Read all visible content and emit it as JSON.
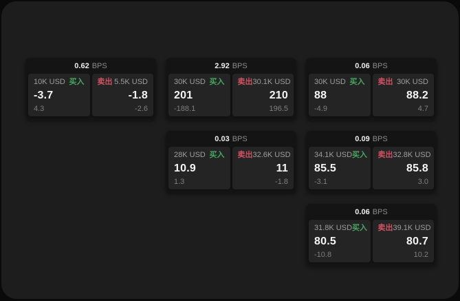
{
  "labels": {
    "bps_suffix": "BPS",
    "buy": "买入",
    "sell": "卖出"
  },
  "colors": {
    "page_bg": "#0a0a0a",
    "surface_bg": "#1d1d1d",
    "card_bg": "#141414",
    "panel_bg": "#242424",
    "buy_green": "#48a661",
    "sell_red": "#cf5263",
    "text_primary": "#f5f5f5",
    "text_secondary": "#9e9e9e",
    "text_tertiary": "#7f7f7f"
  },
  "cards": [
    {
      "bps": "0.62",
      "buy": {
        "amount": "10K USD",
        "value": "-3.7",
        "delta": "4.3"
      },
      "sell": {
        "amount": "5.5K USD",
        "value": "-1.8",
        "delta": "-2.6"
      }
    },
    {
      "bps": "2.92",
      "buy": {
        "amount": "30K USD",
        "value": "201",
        "delta": "-188.1"
      },
      "sell": {
        "amount": "30.1K USD",
        "value": "210",
        "delta": "196.5"
      }
    },
    {
      "bps": "0.06",
      "buy": {
        "amount": "30K USD",
        "value": "88",
        "delta": "-4.9"
      },
      "sell": {
        "amount": "30K USD",
        "value": "88.2",
        "delta": "4.7"
      }
    },
    {
      "bps": "0.03",
      "buy": {
        "amount": "28K USD",
        "value": "10.9",
        "delta": "1.3"
      },
      "sell": {
        "amount": "32.6K USD",
        "value": "11",
        "delta": "-1.8"
      }
    },
    {
      "bps": "0.09",
      "buy": {
        "amount": "34.1K USD",
        "value": "85.5",
        "delta": "-3.1"
      },
      "sell": {
        "amount": "32.8K USD",
        "value": "85.8",
        "delta": "3.0"
      }
    },
    {
      "bps": "0.06",
      "buy": {
        "amount": "31.8K USD",
        "value": "80.5",
        "delta": "-10.8"
      },
      "sell": {
        "amount": "39.1K USD",
        "value": "80.7",
        "delta": "10.2"
      }
    }
  ]
}
